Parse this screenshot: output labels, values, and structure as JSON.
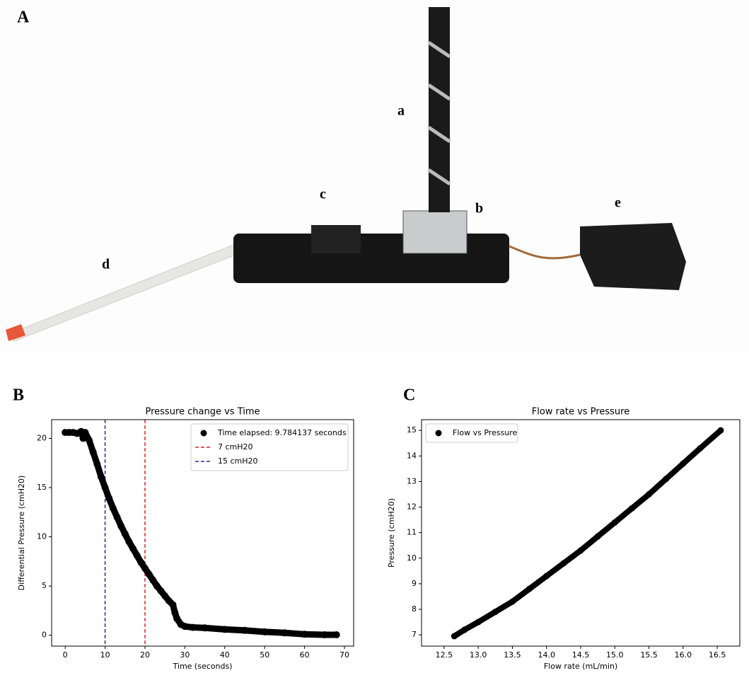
{
  "figure": {
    "panel_labels": [
      "A",
      "B",
      "C"
    ],
    "photo_labels": [
      "a",
      "b",
      "c",
      "d",
      "e"
    ]
  },
  "chart_data": [
    {
      "type": "scatter",
      "title": "Pressure change vs Time",
      "x_label": "Time (seconds)",
      "y_label": "Differential Pressure (cmH20)",
      "x": [
        0,
        1,
        2,
        3,
        4,
        4.5,
        5,
        6,
        7,
        8,
        9,
        10,
        11,
        12,
        13,
        14,
        15,
        16,
        17,
        18,
        19,
        20,
        21,
        22,
        23,
        24,
        25,
        26,
        27,
        27.5,
        28,
        29,
        30,
        32,
        35,
        40,
        45,
        50,
        55,
        60,
        65,
        68
      ],
      "series": [
        {
          "name": "Time elapsed: 9.784137 seconds",
          "color": "#000000",
          "values": [
            20.6,
            20.6,
            20.6,
            20.5,
            20.7,
            20.0,
            20.6,
            19.8,
            18.6,
            17.4,
            16.1,
            15.0,
            13.9,
            12.9,
            12.0,
            11.1,
            10.3,
            9.5,
            8.8,
            8.1,
            7.4,
            6.8,
            6.2,
            5.6,
            5.0,
            4.5,
            4.0,
            3.5,
            3.1,
            2.3,
            1.7,
            1.1,
            0.9,
            0.8,
            0.75,
            0.6,
            0.5,
            0.35,
            0.25,
            0.1,
            0.05,
            0.05
          ]
        }
      ],
      "vlines": [
        {
          "name": "7 cmH20",
          "x": 20,
          "color": "#d62728"
        },
        {
          "name": "15 cmH20",
          "x": 10,
          "color": "#2a2a9c"
        }
      ],
      "xlim": [
        -3.4,
        72.3
      ],
      "xticks": [
        0,
        10,
        20,
        30,
        40,
        50,
        60,
        70
      ],
      "ylim": [
        -1.1,
        21.9
      ],
      "yticks": [
        0,
        5,
        10,
        15,
        20
      ],
      "legend": "upper right"
    },
    {
      "type": "scatter",
      "title": "Flow rate vs Pressure",
      "x_label": "Flow rate (mL/min)",
      "y_label": "Pressure (cmH20)",
      "x": [
        12.65,
        12.8,
        13.0,
        13.25,
        13.5,
        13.75,
        14.0,
        14.25,
        14.5,
        14.75,
        15.0,
        15.25,
        15.5,
        15.75,
        16.0,
        16.25,
        16.55
      ],
      "series": [
        {
          "name": "Flow vs Pressure",
          "color": "#000000",
          "values": [
            6.95,
            7.2,
            7.5,
            7.9,
            8.3,
            8.8,
            9.3,
            9.8,
            10.3,
            10.85,
            11.4,
            11.95,
            12.5,
            13.1,
            13.7,
            14.3,
            15.0
          ]
        }
      ],
      "xlim": [
        12.17,
        16.83
      ],
      "xticks": [
        12.5,
        {
          "value": 13,
          "label": "13.0"
        },
        13.5,
        {
          "value": 14,
          "label": "14.0"
        },
        14.5,
        {
          "value": 15,
          "label": "15.0"
        },
        15.5,
        {
          "value": 16,
          "label": "16.0"
        },
        16.5
      ],
      "ylim": [
        6.56,
        15.42
      ],
      "yticks": [
        7,
        8,
        9,
        10,
        11,
        12,
        13,
        14,
        15
      ],
      "legend": "upper left"
    }
  ]
}
